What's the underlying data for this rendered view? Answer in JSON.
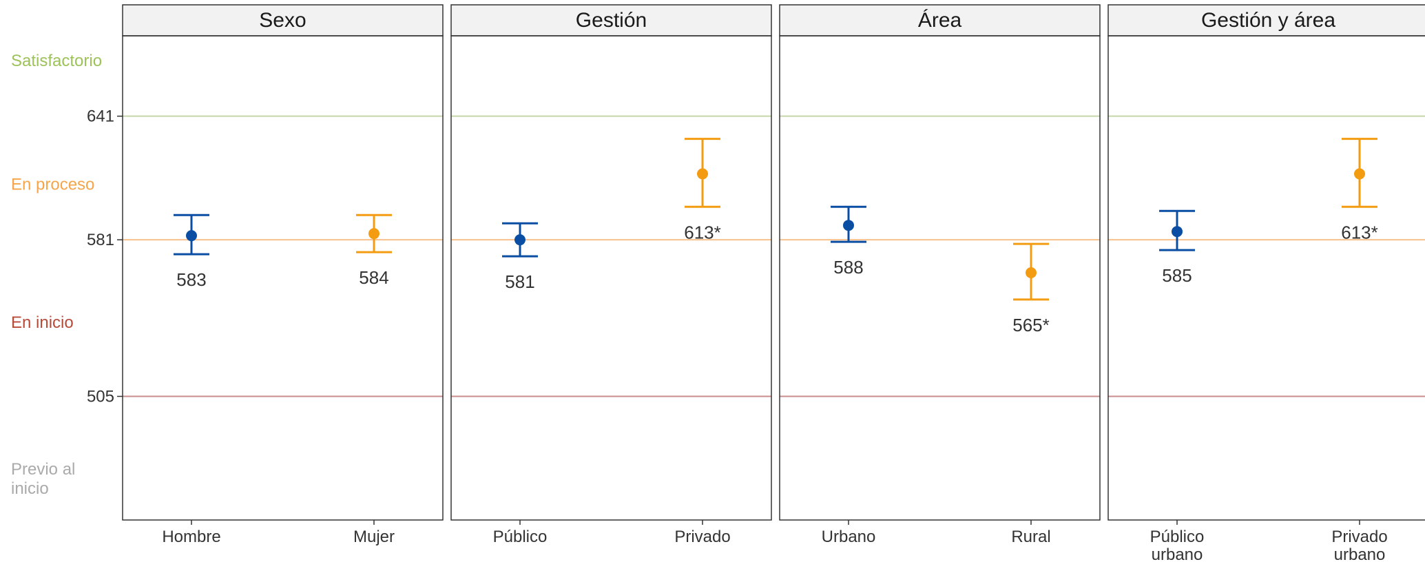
{
  "chart_data": {
    "type": "scatter",
    "subtype": "faceted point estimates with error bars",
    "ylim": [
      445,
      680
    ],
    "y_ticks": [
      {
        "value": 641,
        "label": "641"
      },
      {
        "value": 581,
        "label": "581"
      },
      {
        "value": 505,
        "label": "505"
      }
    ],
    "reference_lines": [
      {
        "value": 641,
        "color": "#c5d6a8"
      },
      {
        "value": 581,
        "color": "#f7c08c"
      },
      {
        "value": 505,
        "color": "#c98b8b"
      }
    ],
    "level_labels": [
      {
        "text": "Satisfactorio",
        "y": 668,
        "color": "#9ec25a"
      },
      {
        "text": "En proceso",
        "y": 608,
        "color": "#f5a54a"
      },
      {
        "text": "En inicio",
        "y": 541,
        "color": "#b84a3a"
      },
      {
        "text": "Previo al inicio",
        "lines": [
          "Previo al",
          "inicio"
        ],
        "y": 465,
        "color": "#aaaaaa"
      }
    ],
    "panels": [
      {
        "title": "Sexo",
        "points": [
          {
            "label": "Hombre",
            "value": 583,
            "low": 574,
            "high": 593,
            "display": "583",
            "color": "#0a4ea3",
            "label_pos": "below"
          },
          {
            "label": "Mujer",
            "value": 584,
            "low": 575,
            "high": 593,
            "display": "584",
            "color": "#f39c12",
            "label_pos": "below"
          }
        ]
      },
      {
        "title": "Gestión",
        "points": [
          {
            "label": "Público",
            "value": 581,
            "low": 573,
            "high": 589,
            "display": "581",
            "color": "#0a4ea3",
            "label_pos": "below"
          },
          {
            "label": "Privado",
            "value": 613,
            "low": 597,
            "high": 630,
            "display": "613*",
            "color": "#f39c12",
            "label_pos": "below"
          }
        ]
      },
      {
        "title": "Área",
        "points": [
          {
            "label": "Urbano",
            "value": 588,
            "low": 580,
            "high": 597,
            "display": "588",
            "color": "#0a4ea3",
            "label_pos": "below"
          },
          {
            "label": "Rural",
            "value": 565,
            "low": 552,
            "high": 579,
            "display": "565*",
            "color": "#f39c12",
            "label_pos": "below"
          }
        ]
      },
      {
        "title": "Gestión y área",
        "points": [
          {
            "label": "Público urbano",
            "lines": [
              "Público",
              "urbano"
            ],
            "value": 585,
            "low": 576,
            "high": 595,
            "display": "585",
            "color": "#0a4ea3",
            "label_pos": "below"
          },
          {
            "label": "Privado urbano",
            "lines": [
              "Privado",
              "urbano"
            ],
            "value": 613,
            "low": 597,
            "high": 630,
            "display": "613*",
            "color": "#f39c12",
            "label_pos": "below"
          }
        ]
      }
    ]
  }
}
